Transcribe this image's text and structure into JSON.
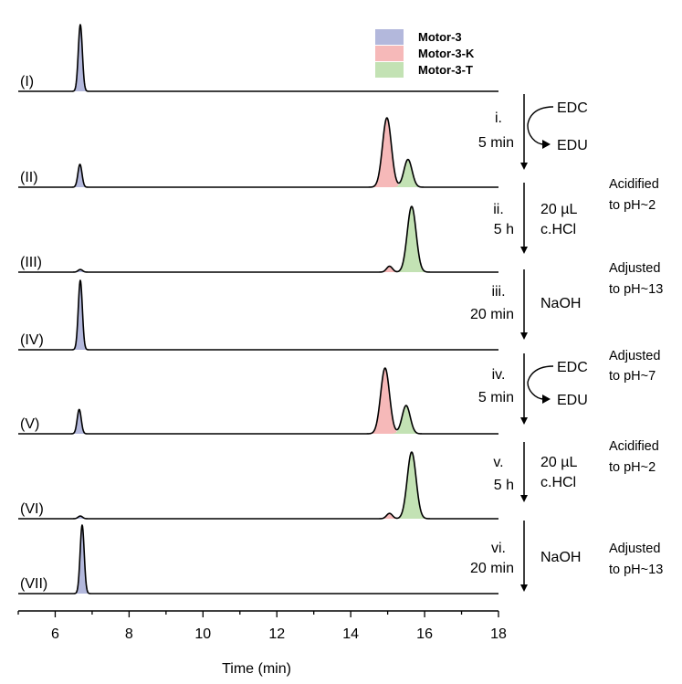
{
  "chart_data": {
    "type": "line",
    "xlabel": "Time (min)",
    "ylabel": "",
    "xlim": [
      5,
      18
    ],
    "xticks": [
      6,
      8,
      10,
      12,
      14,
      16,
      18
    ],
    "legend": {
      "placement": "top-center",
      "items": [
        {
          "name": "Motor-3",
          "color": "#b3b8dc"
        },
        {
          "name": "Motor-3-K",
          "color": "#f6b9b9"
        },
        {
          "name": "Motor-3-T",
          "color": "#c3e2b4"
        }
      ]
    },
    "series": [
      {
        "name": "(I)",
        "peaks": [
          {
            "species": "Motor-3",
            "t": 6.68,
            "height": 1.0,
            "sigma": 0.055
          }
        ]
      },
      {
        "name": "(II)",
        "peaks": [
          {
            "species": "Motor-3",
            "t": 6.67,
            "height": 0.33,
            "sigma": 0.055
          },
          {
            "species": "Motor-3-K",
            "t": 14.98,
            "height": 1.0,
            "sigma": 0.12
          },
          {
            "species": "Motor-3-T",
            "t": 15.55,
            "height": 0.4,
            "sigma": 0.11
          }
        ]
      },
      {
        "name": "(III)",
        "peaks": [
          {
            "species": "Motor-3",
            "t": 6.68,
            "height": 0.04,
            "sigma": 0.06
          },
          {
            "species": "Motor-3-K",
            "t": 15.05,
            "height": 0.09,
            "sigma": 0.08
          },
          {
            "species": "Motor-3-T",
            "t": 15.65,
            "height": 1.0,
            "sigma": 0.12
          }
        ]
      },
      {
        "name": "(IV)",
        "peaks": [
          {
            "species": "Motor-3",
            "t": 6.68,
            "height": 1.0,
            "sigma": 0.055
          }
        ]
      },
      {
        "name": "(V)",
        "peaks": [
          {
            "species": "Motor-3",
            "t": 6.65,
            "height": 0.37,
            "sigma": 0.055
          },
          {
            "species": "Motor-3-K",
            "t": 14.93,
            "height": 1.0,
            "sigma": 0.12
          },
          {
            "species": "Motor-3-T",
            "t": 15.5,
            "height": 0.43,
            "sigma": 0.11
          }
        ]
      },
      {
        "name": "(VI)",
        "peaks": [
          {
            "species": "Motor-3",
            "t": 6.68,
            "height": 0.04,
            "sigma": 0.06
          },
          {
            "species": "Motor-3-K",
            "t": 15.05,
            "height": 0.08,
            "sigma": 0.08
          },
          {
            "species": "Motor-3-T",
            "t": 15.65,
            "height": 1.0,
            "sigma": 0.12
          }
        ]
      },
      {
        "name": "(VII)",
        "peaks": [
          {
            "species": "Motor-3",
            "t": 6.73,
            "height": 1.0,
            "sigma": 0.055
          }
        ]
      }
    ]
  },
  "steps": [
    {
      "num": "i.",
      "detail": "5 min",
      "cycle": true,
      "reagent_in": "EDC",
      "reagent_out": "EDU",
      "note": ""
    },
    {
      "num": "ii.",
      "detail": "5 h",
      "cycle": false,
      "reagent_lines": [
        "20 µL",
        "c.HCl"
      ],
      "note": "Acidified\nto pH~2"
    },
    {
      "num": "iii.",
      "detail": "20 min",
      "cycle": false,
      "reagent_lines": [
        "NaOH"
      ],
      "note": "Adjusted\nto pH~13"
    },
    {
      "num": "iv.",
      "detail": "5 min",
      "cycle": true,
      "reagent_in": "EDC",
      "reagent_out": "EDU",
      "note": "Adjusted\nto pH~7"
    },
    {
      "num": "v.",
      "detail": "5 h",
      "cycle": false,
      "reagent_lines": [
        "20 µL",
        "c.HCl"
      ],
      "note": "Acidified\nto pH~2"
    },
    {
      "num": "vi.",
      "detail": "20 min",
      "cycle": false,
      "reagent_lines": [
        "NaOH"
      ],
      "note": "Adjusted\nto pH~13"
    }
  ]
}
